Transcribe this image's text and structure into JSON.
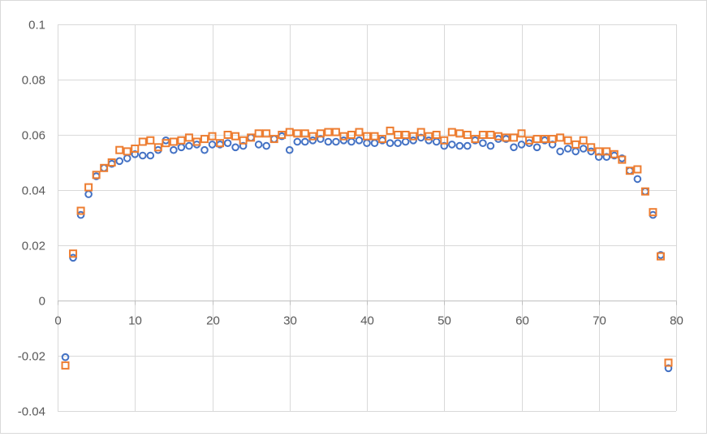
{
  "chart_data": {
    "type": "scatter",
    "title": "",
    "xlabel": "",
    "ylabel": "",
    "xlim": [
      0,
      80
    ],
    "ylim": [
      -0.04,
      0.1
    ],
    "x_ticks": [
      0,
      10,
      20,
      30,
      40,
      50,
      60,
      70,
      80
    ],
    "y_ticks": [
      -0.04,
      -0.02,
      0,
      0.02,
      0.04,
      0.06,
      0.08,
      0.1
    ],
    "x_tick_labels": [
      "0",
      "10",
      "20",
      "30",
      "40",
      "50",
      "60",
      "70",
      "80"
    ],
    "y_tick_labels": [
      "-0.04",
      "-0.02",
      "0",
      "0.02",
      "0.04",
      "0.06",
      "0.08",
      "0.1"
    ],
    "grid": true,
    "legend": "none",
    "series": [
      {
        "marker": "circle",
        "color": "#4472C4",
        "x": [
          1,
          2,
          3,
          4,
          5,
          6,
          7,
          8,
          9,
          10,
          11,
          12,
          13,
          14,
          15,
          16,
          17,
          18,
          19,
          20,
          21,
          22,
          23,
          24,
          25,
          26,
          27,
          28,
          29,
          30,
          31,
          32,
          33,
          34,
          35,
          36,
          37,
          38,
          39,
          40,
          41,
          42,
          43,
          44,
          45,
          46,
          47,
          48,
          49,
          50,
          51,
          52,
          53,
          54,
          55,
          56,
          57,
          58,
          59,
          60,
          61,
          62,
          63,
          64,
          65,
          66,
          67,
          68,
          69,
          70,
          71,
          72,
          73,
          74,
          75,
          76,
          77,
          78,
          79
        ],
        "y": [
          -0.0205,
          0.0155,
          0.031,
          0.0385,
          0.045,
          0.048,
          0.0495,
          0.0505,
          0.0515,
          0.053,
          0.0525,
          0.0525,
          0.0545,
          0.058,
          0.0545,
          0.0555,
          0.056,
          0.0565,
          0.0545,
          0.0565,
          0.0565,
          0.057,
          0.0555,
          0.056,
          0.059,
          0.0565,
          0.056,
          0.0585,
          0.0595,
          0.0545,
          0.0575,
          0.0575,
          0.058,
          0.0585,
          0.0575,
          0.0575,
          0.058,
          0.0575,
          0.058,
          0.057,
          0.057,
          0.058,
          0.057,
          0.057,
          0.0575,
          0.058,
          0.059,
          0.058,
          0.0575,
          0.056,
          0.0565,
          0.056,
          0.056,
          0.058,
          0.057,
          0.056,
          0.0585,
          0.0585,
          0.0555,
          0.0565,
          0.057,
          0.0555,
          0.058,
          0.0565,
          0.054,
          0.055,
          0.054,
          0.055,
          0.054,
          0.052,
          0.052,
          0.0525,
          0.0515,
          0.047,
          0.044,
          0.0395,
          0.031,
          0.0165,
          -0.0245
        ]
      },
      {
        "marker": "square",
        "color": "#ED7D31",
        "x": [
          1,
          2,
          3,
          4,
          5,
          6,
          7,
          8,
          9,
          10,
          11,
          12,
          13,
          14,
          15,
          16,
          17,
          18,
          19,
          20,
          21,
          22,
          23,
          24,
          25,
          26,
          27,
          28,
          29,
          30,
          31,
          32,
          33,
          34,
          35,
          36,
          37,
          38,
          39,
          40,
          41,
          42,
          43,
          44,
          45,
          46,
          47,
          48,
          49,
          50,
          51,
          52,
          53,
          54,
          55,
          56,
          57,
          58,
          59,
          60,
          61,
          62,
          63,
          64,
          65,
          66,
          67,
          68,
          69,
          70,
          71,
          72,
          73,
          74,
          75,
          76,
          77,
          78,
          79
        ],
        "y": [
          -0.0235,
          0.017,
          0.0325,
          0.041,
          0.0455,
          0.048,
          0.05,
          0.0545,
          0.054,
          0.055,
          0.0575,
          0.058,
          0.0555,
          0.057,
          0.0575,
          0.058,
          0.059,
          0.0575,
          0.0585,
          0.0595,
          0.057,
          0.06,
          0.0595,
          0.058,
          0.059,
          0.0605,
          0.0605,
          0.0585,
          0.06,
          0.061,
          0.0605,
          0.0605,
          0.0595,
          0.0605,
          0.061,
          0.061,
          0.0595,
          0.06,
          0.061,
          0.0595,
          0.0595,
          0.0585,
          0.0615,
          0.06,
          0.06,
          0.0595,
          0.061,
          0.0595,
          0.06,
          0.058,
          0.061,
          0.0605,
          0.06,
          0.0585,
          0.06,
          0.06,
          0.0595,
          0.059,
          0.059,
          0.0605,
          0.058,
          0.0585,
          0.0585,
          0.0585,
          0.059,
          0.058,
          0.0565,
          0.058,
          0.0555,
          0.054,
          0.054,
          0.053,
          0.051,
          0.047,
          0.0475,
          0.0395,
          0.032,
          0.016,
          -0.0225
        ]
      }
    ]
  }
}
